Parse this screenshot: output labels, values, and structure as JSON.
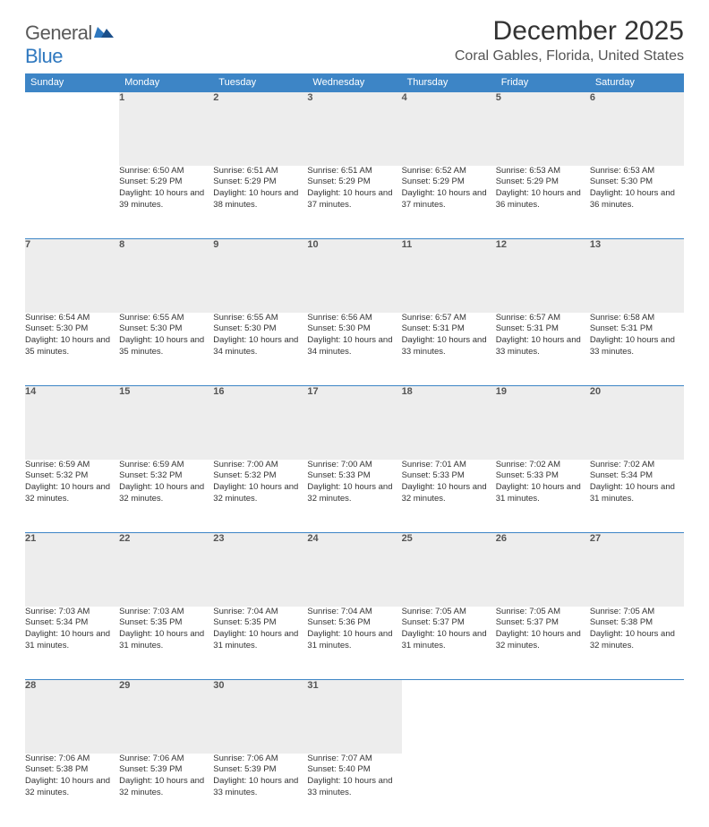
{
  "logo": {
    "general": "General",
    "blue": "Blue"
  },
  "title": "December 2025",
  "location": "Coral Gables, Florida, United States",
  "colors": {
    "header_bg": "#3d85c6",
    "header_text": "#ffffff",
    "daynum_bg": "#ededed",
    "row_border": "#3d85c6",
    "logo_blue": "#2f78bf",
    "logo_gray": "#5a5a5a",
    "body_text": "#333333",
    "page_bg": "#ffffff"
  },
  "weekdays": [
    "Sunday",
    "Monday",
    "Tuesday",
    "Wednesday",
    "Thursday",
    "Friday",
    "Saturday"
  ],
  "weeks": [
    [
      null,
      {
        "n": "1",
        "sr": "6:50 AM",
        "ss": "5:29 PM",
        "dl": "10 hours and 39 minutes."
      },
      {
        "n": "2",
        "sr": "6:51 AM",
        "ss": "5:29 PM",
        "dl": "10 hours and 38 minutes."
      },
      {
        "n": "3",
        "sr": "6:51 AM",
        "ss": "5:29 PM",
        "dl": "10 hours and 37 minutes."
      },
      {
        "n": "4",
        "sr": "6:52 AM",
        "ss": "5:29 PM",
        "dl": "10 hours and 37 minutes."
      },
      {
        "n": "5",
        "sr": "6:53 AM",
        "ss": "5:29 PM",
        "dl": "10 hours and 36 minutes."
      },
      {
        "n": "6",
        "sr": "6:53 AM",
        "ss": "5:30 PM",
        "dl": "10 hours and 36 minutes."
      }
    ],
    [
      {
        "n": "7",
        "sr": "6:54 AM",
        "ss": "5:30 PM",
        "dl": "10 hours and 35 minutes."
      },
      {
        "n": "8",
        "sr": "6:55 AM",
        "ss": "5:30 PM",
        "dl": "10 hours and 35 minutes."
      },
      {
        "n": "9",
        "sr": "6:55 AM",
        "ss": "5:30 PM",
        "dl": "10 hours and 34 minutes."
      },
      {
        "n": "10",
        "sr": "6:56 AM",
        "ss": "5:30 PM",
        "dl": "10 hours and 34 minutes."
      },
      {
        "n": "11",
        "sr": "6:57 AM",
        "ss": "5:31 PM",
        "dl": "10 hours and 33 minutes."
      },
      {
        "n": "12",
        "sr": "6:57 AM",
        "ss": "5:31 PM",
        "dl": "10 hours and 33 minutes."
      },
      {
        "n": "13",
        "sr": "6:58 AM",
        "ss": "5:31 PM",
        "dl": "10 hours and 33 minutes."
      }
    ],
    [
      {
        "n": "14",
        "sr": "6:59 AM",
        "ss": "5:32 PM",
        "dl": "10 hours and 32 minutes."
      },
      {
        "n": "15",
        "sr": "6:59 AM",
        "ss": "5:32 PM",
        "dl": "10 hours and 32 minutes."
      },
      {
        "n": "16",
        "sr": "7:00 AM",
        "ss": "5:32 PM",
        "dl": "10 hours and 32 minutes."
      },
      {
        "n": "17",
        "sr": "7:00 AM",
        "ss": "5:33 PM",
        "dl": "10 hours and 32 minutes."
      },
      {
        "n": "18",
        "sr": "7:01 AM",
        "ss": "5:33 PM",
        "dl": "10 hours and 32 minutes."
      },
      {
        "n": "19",
        "sr": "7:02 AM",
        "ss": "5:33 PM",
        "dl": "10 hours and 31 minutes."
      },
      {
        "n": "20",
        "sr": "7:02 AM",
        "ss": "5:34 PM",
        "dl": "10 hours and 31 minutes."
      }
    ],
    [
      {
        "n": "21",
        "sr": "7:03 AM",
        "ss": "5:34 PM",
        "dl": "10 hours and 31 minutes."
      },
      {
        "n": "22",
        "sr": "7:03 AM",
        "ss": "5:35 PM",
        "dl": "10 hours and 31 minutes."
      },
      {
        "n": "23",
        "sr": "7:04 AM",
        "ss": "5:35 PM",
        "dl": "10 hours and 31 minutes."
      },
      {
        "n": "24",
        "sr": "7:04 AM",
        "ss": "5:36 PM",
        "dl": "10 hours and 31 minutes."
      },
      {
        "n": "25",
        "sr": "7:05 AM",
        "ss": "5:37 PM",
        "dl": "10 hours and 31 minutes."
      },
      {
        "n": "26",
        "sr": "7:05 AM",
        "ss": "5:37 PM",
        "dl": "10 hours and 32 minutes."
      },
      {
        "n": "27",
        "sr": "7:05 AM",
        "ss": "5:38 PM",
        "dl": "10 hours and 32 minutes."
      }
    ],
    [
      {
        "n": "28",
        "sr": "7:06 AM",
        "ss": "5:38 PM",
        "dl": "10 hours and 32 minutes."
      },
      {
        "n": "29",
        "sr": "7:06 AM",
        "ss": "5:39 PM",
        "dl": "10 hours and 32 minutes."
      },
      {
        "n": "30",
        "sr": "7:06 AM",
        "ss": "5:39 PM",
        "dl": "10 hours and 33 minutes."
      },
      {
        "n": "31",
        "sr": "7:07 AM",
        "ss": "5:40 PM",
        "dl": "10 hours and 33 minutes."
      },
      null,
      null,
      null
    ]
  ],
  "labels": {
    "sunrise": "Sunrise:",
    "sunset": "Sunset:",
    "daylight": "Daylight:"
  }
}
